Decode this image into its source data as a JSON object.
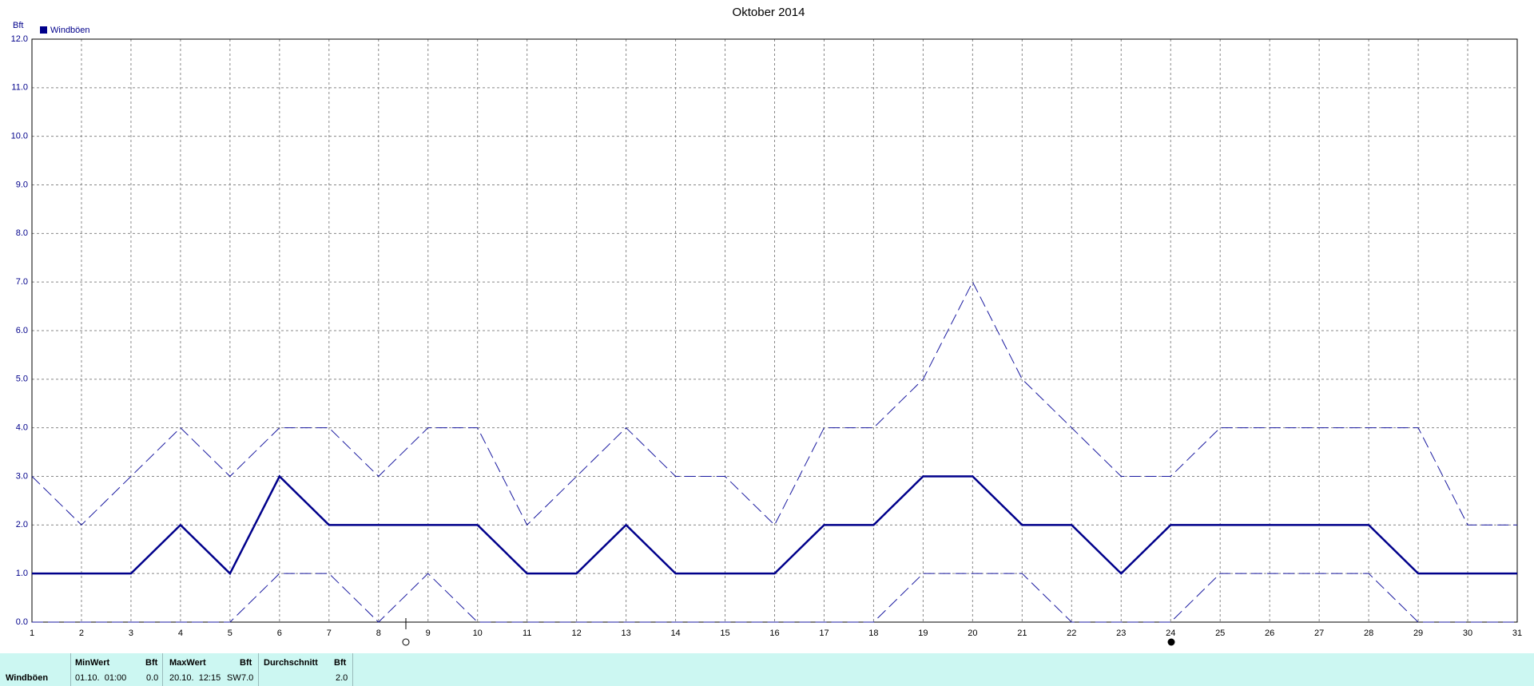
{
  "chart_data": {
    "type": "line",
    "title": "Oktober 2014",
    "y_label": "Bft",
    "x": [
      1,
      2,
      3,
      4,
      5,
      6,
      7,
      8,
      9,
      10,
      11,
      12,
      13,
      14,
      15,
      16,
      17,
      18,
      19,
      20,
      21,
      22,
      23,
      24,
      25,
      26,
      27,
      28,
      29,
      30,
      31
    ],
    "xlim": [
      1,
      31
    ],
    "xticks": [
      1,
      2,
      3,
      4,
      5,
      6,
      7,
      8,
      9,
      10,
      11,
      12,
      13,
      14,
      15,
      16,
      17,
      18,
      19,
      20,
      21,
      22,
      23,
      24,
      25,
      26,
      27,
      28,
      29,
      30,
      31
    ],
    "ylim": [
      0,
      12
    ],
    "yticks": [
      {
        "value": 0,
        "label": "0.0"
      },
      {
        "value": 1,
        "label": "1.0"
      },
      {
        "value": 2,
        "label": "2.0"
      },
      {
        "value": 3,
        "label": "3.0"
      },
      {
        "value": 4,
        "label": "4.0"
      },
      {
        "value": 5,
        "label": "5.0"
      },
      {
        "value": 6,
        "label": "6.0"
      },
      {
        "value": 7,
        "label": "7.0"
      },
      {
        "value": 8,
        "label": "8.0"
      },
      {
        "value": 9,
        "label": "9.0"
      },
      {
        "value": 10,
        "label": "10.0"
      },
      {
        "value": 11,
        "label": "11.0"
      },
      {
        "value": 12,
        "label": "12.0"
      }
    ],
    "grid": true,
    "legend": "top-left",
    "series": [
      {
        "name": "Windböen",
        "color": "#00008b",
        "dashed": false,
        "values": [
          1,
          1,
          1,
          2,
          1,
          3,
          2,
          2,
          2,
          2,
          1,
          1,
          2,
          1,
          1,
          1,
          2,
          2,
          3,
          3,
          2,
          2,
          1,
          2,
          2,
          2,
          2,
          2,
          1,
          1,
          1
        ]
      },
      {
        "color": "#1a1aa0",
        "dashed": true,
        "values": [
          3,
          2,
          3,
          4,
          3,
          4,
          4,
          3,
          4,
          4,
          2,
          3,
          4,
          3,
          3,
          2,
          4,
          4,
          5,
          7,
          5,
          4,
          3,
          3,
          4,
          4,
          4,
          4,
          4,
          2,
          2
        ]
      },
      {
        "color": "#1a1aa0",
        "dashed": true,
        "values": [
          0,
          0,
          0,
          0,
          0,
          1,
          1,
          0,
          1,
          0,
          0,
          0,
          0,
          0,
          0,
          0,
          0,
          0,
          1,
          1,
          1,
          0,
          0,
          0,
          1,
          1,
          1,
          1,
          0,
          0,
          0
        ]
      }
    ]
  },
  "table": {
    "row_label": "Windböen",
    "min": {
      "header": "MinWert",
      "unit": "Bft",
      "time": "01.10.  01:00",
      "value": "0.0"
    },
    "max": {
      "header": "MaxWert",
      "unit": "Bft",
      "time": "20.10.  12:15",
      "direction": "SW",
      "value": "7.0"
    },
    "avg": {
      "header": "Durchschnitt",
      "unit": "Bft",
      "value": "2.0"
    }
  }
}
